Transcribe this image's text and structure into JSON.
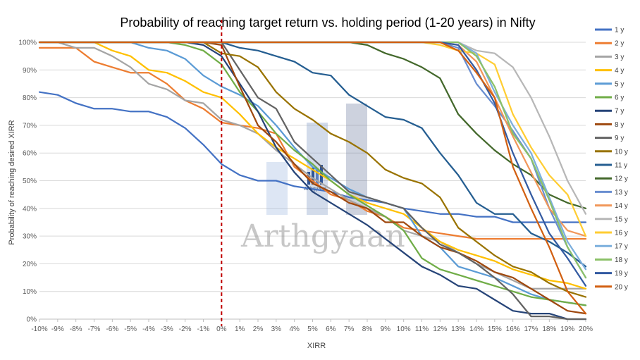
{
  "chart_data": {
    "type": "line",
    "title": "Probability of reaching target return vs. holding period (1-20 years) in Nifty",
    "xlabel": "XIRR",
    "ylabel": "Probability of reaching desired XIRR",
    "ylim": [
      0,
      100
    ],
    "y_ticks": [
      "0%",
      "10%",
      "20%",
      "30%",
      "40%",
      "50%",
      "60%",
      "70%",
      "80%",
      "90%",
      "100%"
    ],
    "x": [
      -10,
      -9,
      -8,
      -7,
      -6,
      -5,
      -4,
      -3,
      -2,
      -1,
      0,
      1,
      2,
      3,
      4,
      5,
      6,
      7,
      8,
      9,
      10,
      11,
      12,
      13,
      14,
      15,
      16,
      17,
      18,
      19,
      20
    ],
    "x_tick_labels": [
      "-10%",
      "-9%",
      "-8%",
      "-7%",
      "-6%",
      "-5%",
      "-4%",
      "-3%",
      "-2%",
      "-1%",
      "0%",
      "1%",
      "2%",
      "3%",
      "4%",
      "5%",
      "6%",
      "7%",
      "8%",
      "9%",
      "10%",
      "11%",
      "12%",
      "13%",
      "14%",
      "15%",
      "16%",
      "17%",
      "18%",
      "19%",
      "20%"
    ],
    "reference_line": {
      "x": 0,
      "color": "#c00000",
      "style": "dashed"
    },
    "grid": true,
    "legend_position": "right",
    "watermark": "Arthgyaan",
    "series": [
      {
        "name": "1 y",
        "color": "#4472c4",
        "values": [
          82,
          81,
          78,
          76,
          76,
          75,
          75,
          73,
          69,
          63,
          56,
          52,
          50,
          50,
          48,
          47,
          46,
          44,
          43,
          42,
          40,
          39,
          38,
          38,
          37,
          37,
          35,
          35,
          35,
          35,
          35
        ]
      },
      {
        "name": "2 y",
        "color": "#ed7d31",
        "values": [
          98,
          98,
          98,
          93,
          91,
          89,
          89,
          85,
          79,
          76,
          71,
          70,
          69,
          67,
          55,
          50,
          45,
          43,
          39,
          37,
          33,
          32,
          31,
          30,
          29,
          29,
          29,
          29,
          29,
          29,
          29
        ]
      },
      {
        "name": "3 y",
        "color": "#a5a5a5",
        "values": [
          100,
          100,
          98,
          98,
          95,
          91,
          85,
          83,
          79,
          78,
          72,
          70,
          67,
          61,
          56,
          51,
          47,
          43,
          40,
          37,
          32,
          30,
          28,
          24,
          20,
          17,
          14,
          11,
          11,
          11,
          11
        ]
      },
      {
        "name": "4 y",
        "color": "#ffc000",
        "values": [
          100,
          100,
          100,
          100,
          97,
          95,
          90,
          89,
          86,
          82,
          80,
          74,
          67,
          62,
          58,
          54,
          50,
          45,
          42,
          40,
          38,
          33,
          28,
          25,
          23,
          21,
          18,
          16,
          14,
          13,
          11
        ]
      },
      {
        "name": "5 y",
        "color": "#5b9bd5",
        "values": [
          100,
          100,
          100,
          100,
          100,
          100,
          98,
          97,
          94,
          88,
          84,
          81,
          77,
          70,
          62,
          55,
          51,
          47,
          44,
          42,
          40,
          30,
          26,
          19,
          17,
          15,
          12,
          9,
          7,
          6,
          5
        ]
      },
      {
        "name": "6 y",
        "color": "#70ad47",
        "values": [
          100,
          100,
          100,
          100,
          100,
          100,
          100,
          100,
          99,
          97,
          92,
          82,
          75,
          67,
          61,
          56,
          50,
          45,
          41,
          37,
          32,
          22,
          18,
          16,
          14,
          12,
          10,
          8,
          7,
          6,
          5
        ]
      },
      {
        "name": "7 y",
        "color": "#264478",
        "values": [
          100,
          100,
          100,
          100,
          100,
          100,
          100,
          100,
          100,
          99,
          95,
          85,
          75,
          62,
          53,
          46,
          42,
          38,
          34,
          29,
          24,
          19,
          16,
          12,
          11,
          7,
          3,
          2,
          2,
          0,
          0
        ]
      },
      {
        "name": "8 y",
        "color": "#9e480e",
        "values": [
          100,
          100,
          100,
          100,
          100,
          100,
          100,
          100,
          100,
          100,
          99,
          84,
          70,
          64,
          56,
          49,
          46,
          42,
          40,
          35,
          35,
          30,
          26,
          24,
          21,
          17,
          15,
          11,
          7,
          3,
          2
        ]
      },
      {
        "name": "9 y",
        "color": "#636363",
        "values": [
          100,
          100,
          100,
          100,
          100,
          100,
          100,
          100,
          100,
          100,
          100,
          90,
          80,
          76,
          64,
          58,
          52,
          46,
          44,
          42,
          40,
          33,
          27,
          24,
          20,
          15,
          9,
          1,
          1,
          0,
          0
        ]
      },
      {
        "name": "10 y",
        "color": "#997300",
        "values": [
          100,
          100,
          100,
          100,
          100,
          100,
          100,
          100,
          100,
          100,
          96,
          95,
          91,
          82,
          76,
          72,
          67,
          64,
          60,
          54,
          51,
          49,
          44,
          33,
          28,
          23,
          19,
          17,
          13,
          10,
          8
        ]
      },
      {
        "name": "11 y",
        "color": "#255e91",
        "values": [
          100,
          100,
          100,
          100,
          100,
          100,
          100,
          100,
          100,
          100,
          100,
          98,
          97,
          95,
          93,
          89,
          88,
          81,
          77,
          73,
          72,
          69,
          60,
          52,
          42,
          38,
          38,
          31,
          28,
          24,
          19
        ]
      },
      {
        "name": "12 y",
        "color": "#43682b",
        "values": [
          100,
          100,
          100,
          100,
          100,
          100,
          100,
          100,
          100,
          100,
          100,
          100,
          100,
          100,
          100,
          100,
          100,
          100,
          99,
          96,
          94,
          91,
          87,
          74,
          67,
          61,
          56,
          52,
          45,
          42,
          40
        ]
      },
      {
        "name": "13 y",
        "color": "#698ed0",
        "values": [
          100,
          100,
          100,
          100,
          100,
          100,
          100,
          100,
          100,
          100,
          100,
          100,
          100,
          100,
          100,
          100,
          100,
          100,
          100,
          100,
          100,
          100,
          100,
          98,
          85,
          77,
          68,
          58,
          40,
          26,
          15
        ]
      },
      {
        "name": "14 y",
        "color": "#f1975a",
        "values": [
          100,
          100,
          100,
          100,
          100,
          100,
          100,
          100,
          100,
          100,
          100,
          100,
          100,
          100,
          100,
          100,
          100,
          100,
          100,
          100,
          100,
          100,
          100,
          99,
          93,
          80,
          66,
          53,
          40,
          32,
          30
        ]
      },
      {
        "name": "15 y",
        "color": "#b7b7b7",
        "values": [
          100,
          100,
          100,
          100,
          100,
          100,
          100,
          100,
          100,
          100,
          100,
          100,
          100,
          100,
          100,
          100,
          100,
          100,
          100,
          100,
          100,
          100,
          100,
          100,
          97,
          96,
          91,
          80,
          66,
          50,
          38
        ]
      },
      {
        "name": "16 y",
        "color": "#ffcd33",
        "values": [
          100,
          100,
          100,
          100,
          100,
          100,
          100,
          100,
          100,
          100,
          100,
          100,
          100,
          100,
          100,
          100,
          100,
          100,
          100,
          100,
          100,
          100,
          99,
          97,
          96,
          92,
          74,
          62,
          52,
          45,
          30
        ]
      },
      {
        "name": "17 y",
        "color": "#7cafdd",
        "values": [
          100,
          100,
          100,
          100,
          100,
          100,
          100,
          100,
          100,
          100,
          100,
          100,
          100,
          100,
          100,
          100,
          100,
          100,
          100,
          100,
          100,
          100,
          100,
          100,
          96,
          82,
          70,
          60,
          44,
          28,
          18
        ]
      },
      {
        "name": "18 y",
        "color": "#8cc168",
        "values": [
          100,
          100,
          100,
          100,
          100,
          100,
          100,
          100,
          100,
          100,
          100,
          100,
          100,
          100,
          100,
          100,
          100,
          100,
          100,
          100,
          100,
          100,
          100,
          100,
          95,
          84,
          67,
          58,
          43,
          26,
          15
        ]
      },
      {
        "name": "19 y",
        "color": "#335aa1",
        "values": [
          100,
          100,
          100,
          100,
          100,
          100,
          100,
          100,
          100,
          100,
          100,
          100,
          100,
          100,
          100,
          100,
          100,
          100,
          100,
          100,
          100,
          100,
          100,
          99,
          90,
          78,
          60,
          45,
          31,
          22,
          12
        ]
      },
      {
        "name": "20 y",
        "color": "#d26012",
        "values": [
          100,
          100,
          100,
          100,
          100,
          100,
          100,
          100,
          100,
          100,
          100,
          100,
          100,
          100,
          100,
          100,
          100,
          100,
          100,
          100,
          100,
          100,
          100,
          97,
          89,
          80,
          55,
          40,
          26,
          10,
          2
        ]
      }
    ]
  }
}
